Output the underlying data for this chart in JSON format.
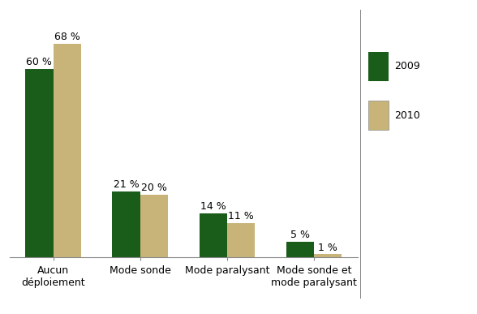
{
  "categories": [
    "Aucun\ndéploiement",
    "Mode sonde",
    "Mode paralysant",
    "Mode sonde et\nmode paralysant"
  ],
  "values_2009": [
    60,
    21,
    14,
    5
  ],
  "values_2010": [
    68,
    20,
    11,
    1
  ],
  "color_2009": "#1a5c1a",
  "color_2010": "#c8b478",
  "legend_labels": [
    "2009",
    "2010"
  ],
  "bar_width": 0.32,
  "ylim": [
    0,
    78
  ],
  "background_color": "#ffffff",
  "tick_fontsize": 9,
  "legend_fontsize": 9,
  "value_fontsize": 9
}
